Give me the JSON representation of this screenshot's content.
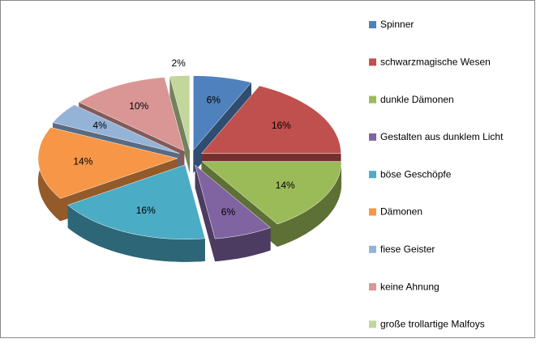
{
  "chart_data": {
    "type": "pie",
    "three_d": true,
    "exploded": true,
    "legend": "right",
    "categories": [
      "Spinner",
      "schwarzmagische Wesen",
      "dunkle Dämonen",
      "Gestalten aus dunklem Licht",
      "böse Geschöpfe",
      "Dämonen",
      "fiese Geister",
      "keine Ahnung",
      "große trollartige Malfoys"
    ],
    "values": [
      6,
      16,
      14,
      6,
      16,
      14,
      4,
      10,
      2
    ],
    "value_labels": [
      "6%",
      "16%",
      "14%",
      "6%",
      "16%",
      "14%",
      "4%",
      "10%",
      "2%"
    ],
    "colors": [
      "#4f81bd",
      "#c0504d",
      "#9bbb59",
      "#8064a2",
      "#4bacc6",
      "#f79646",
      "#95b3d7",
      "#d99694",
      "#c3d69b"
    ]
  }
}
